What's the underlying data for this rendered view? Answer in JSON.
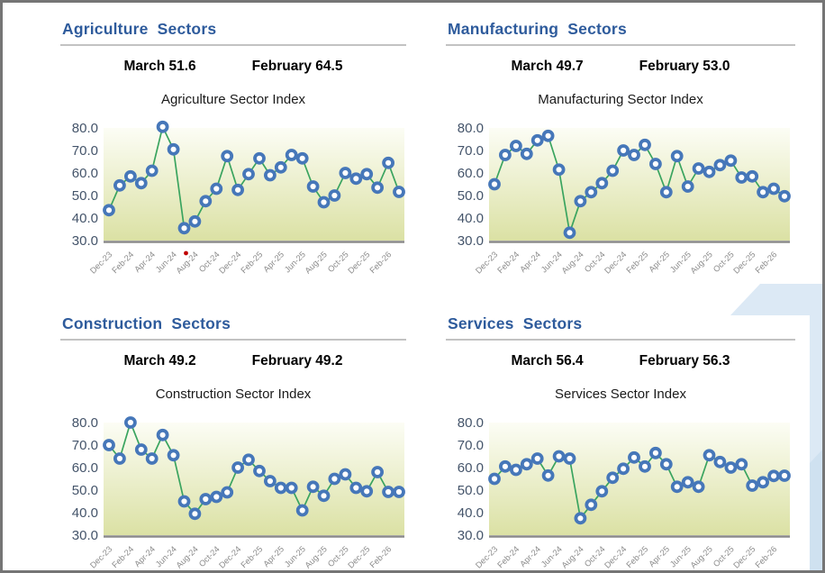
{
  "colors": {
    "header_blue": "#2E5B9C",
    "header_rule": "#C2C2C2",
    "page_border": "#757575",
    "marker_ring": "#4677B9",
    "marker_fill": "#FFFFFF",
    "line_green": "#3AA45F",
    "plot_bg_top": "#FCFDF5",
    "plot_bg_bottom": "#DBE1A4",
    "axis_line": "#8A8A8A",
    "y_tick_text": "#44546A",
    "x_tick_text": "#8B8B8B",
    "subvalue_text": "#000000",
    "chart_title_text": "#1A1A1A",
    "red_dot": "#C00000",
    "decor_blue": "#DCE9F5",
    "decor_blue_dark": "#CFE1F0"
  },
  "chart_data": [
    {
      "type": "line",
      "header": "Agriculture  Sectors",
      "march_text": "March 51.6",
      "february_text": "February 64.5",
      "title": "Agriculture Sector Index",
      "x": [
        "Dec-23",
        "Jan-24",
        "Feb-24",
        "Mar-24",
        "Apr-24",
        "May-24",
        "Jun-24",
        "Jul-24",
        "Aug-24",
        "Sep-24",
        "Oct-24",
        "Nov-24",
        "Dec-24",
        "Jan-25",
        "Feb-25",
        "Mar-25",
        "Apr-25",
        "May-25",
        "Jun-25",
        "Jul-25",
        "Aug-25",
        "Sep-25",
        "Oct-25",
        "Nov-25",
        "Dec-25",
        "Jan-26",
        "Feb-26",
        "Mar-26"
      ],
      "x_tick_step": 2,
      "values": [
        43.5,
        54.5,
        58.5,
        55.5,
        61,
        80.5,
        70.5,
        35.5,
        38.5,
        47.5,
        53,
        67.5,
        52.5,
        59.5,
        66.5,
        59,
        62.5,
        68,
        66.5,
        54,
        47,
        50,
        60,
        57.5,
        59.5,
        53.5,
        64.5,
        51.6
      ],
      "ylim": [
        30,
        80
      ],
      "y_tick_labels": [
        "30.0",
        "40.0",
        "50.0",
        "60.0",
        "70.0",
        "80.0"
      ],
      "legend": "none",
      "grid": false,
      "red_dot": true
    },
    {
      "type": "line",
      "header": "Manufacturing  Sectors",
      "march_text": "March 49.7",
      "february_text": "February 53.0",
      "title": "Manufacturing Sector Index",
      "x": [
        "Dec-23",
        "Jan-24",
        "Feb-24",
        "Mar-24",
        "Apr-24",
        "May-24",
        "Jun-24",
        "Jul-24",
        "Aug-24",
        "Sep-24",
        "Oct-24",
        "Nov-24",
        "Dec-24",
        "Jan-25",
        "Feb-25",
        "Mar-25",
        "Apr-25",
        "May-25",
        "Jun-25",
        "Jul-25",
        "Aug-25",
        "Sep-25",
        "Oct-25",
        "Nov-25",
        "Dec-25",
        "Jan-26",
        "Feb-26",
        "Mar-26"
      ],
      "x_tick_step": 2,
      "values": [
        55,
        68,
        72,
        68.5,
        74.5,
        76.5,
        61.5,
        33.5,
        47.5,
        51.5,
        55.5,
        61,
        70,
        68,
        72.5,
        64,
        51.5,
        67.5,
        54,
        62,
        60.5,
        63.5,
        65.5,
        58,
        58.5,
        51.5,
        53,
        49.7
      ],
      "ylim": [
        30,
        80
      ],
      "y_tick_labels": [
        "30.0",
        "40.0",
        "50.0",
        "60.0",
        "70.0",
        "80.0"
      ],
      "legend": "none",
      "grid": false,
      "red_dot": false
    },
    {
      "type": "line",
      "header": "Construction  Sectors",
      "march_text": "March 49.2",
      "february_text": "February 49.2",
      "title": "Construction Sector Index",
      "x": [
        "Dec-23",
        "Jan-24",
        "Feb-24",
        "Mar-24",
        "Apr-24",
        "May-24",
        "Jun-24",
        "Jul-24",
        "Aug-24",
        "Sep-24",
        "Oct-24",
        "Nov-24",
        "Dec-24",
        "Jan-25",
        "Feb-25",
        "Mar-25",
        "Apr-25",
        "May-25",
        "Jun-25",
        "Jul-25",
        "Aug-25",
        "Sep-25",
        "Oct-25",
        "Nov-25",
        "Dec-25",
        "Jan-26",
        "Feb-26",
        "Mar-26"
      ],
      "x_tick_step": 2,
      "values": [
        70,
        64,
        80,
        68,
        64,
        74.5,
        65.5,
        45,
        39.5,
        46,
        47,
        49,
        60,
        63.5,
        58.5,
        54,
        51,
        51,
        41,
        51.5,
        47.5,
        55,
        57,
        51,
        49.5,
        58,
        49.2,
        49.2
      ],
      "ylim": [
        30,
        80
      ],
      "y_tick_labels": [
        "30.0",
        "40.0",
        "50.0",
        "60.0",
        "70.0",
        "80.0"
      ],
      "legend": "none",
      "grid": false,
      "red_dot": false
    },
    {
      "type": "line",
      "header": "Services  Sectors",
      "march_text": "March 56.4",
      "february_text": "February 56.3",
      "title": "Services Sector Index",
      "x": [
        "Dec-23",
        "Jan-24",
        "Feb-24",
        "Mar-24",
        "Apr-24",
        "May-24",
        "Jun-24",
        "Jul-24",
        "Aug-24",
        "Sep-24",
        "Oct-24",
        "Nov-24",
        "Dec-24",
        "Jan-25",
        "Feb-25",
        "Mar-25",
        "Apr-25",
        "May-25",
        "Jun-25",
        "Jul-25",
        "Aug-25",
        "Sep-25",
        "Oct-25",
        "Nov-25",
        "Dec-25",
        "Jan-26",
        "Feb-26",
        "Mar-26"
      ],
      "x_tick_step": 2,
      "values": [
        55,
        60.5,
        59,
        61.5,
        64,
        56.5,
        65,
        64,
        37.5,
        43.5,
        49.5,
        55.5,
        59.5,
        64.5,
        60.5,
        66.5,
        61.5,
        51.5,
        53.5,
        51.5,
        65.5,
        62.5,
        60,
        61.5,
        52,
        53.5,
        56.3,
        56.4
      ],
      "ylim": [
        30,
        80
      ],
      "y_tick_labels": [
        "30.0",
        "40.0",
        "50.0",
        "60.0",
        "70.0",
        "80.0"
      ],
      "legend": "none",
      "grid": false,
      "red_dot": false
    }
  ]
}
